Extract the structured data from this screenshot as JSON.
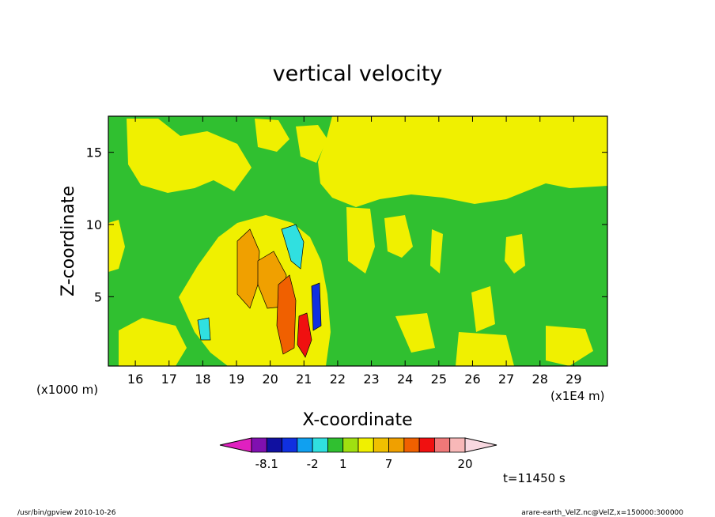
{
  "chart_data": {
    "type": "heatmap",
    "title": "vertical velocity",
    "xlabel": "X-coordinate",
    "ylabel": "Z-coordinate",
    "x_unit_left": "(x1000 m)",
    "x_unit_right": "(x1E4 m)",
    "xlim": [
      15.2,
      30.0
    ],
    "ylim": [
      0.2,
      17.5
    ],
    "x_ticks": [
      16,
      17,
      18,
      19,
      20,
      21,
      22,
      23,
      24,
      25,
      26,
      27,
      28,
      29
    ],
    "x_tick_labels": [
      "16",
      "17",
      "18",
      "19",
      "20",
      "21",
      "22",
      "23",
      "24",
      "25",
      "26",
      "27",
      "28",
      "29"
    ],
    "y_ticks": [
      5,
      10,
      15
    ],
    "y_tick_labels": [
      "5",
      "10",
      "15"
    ],
    "colorbar": {
      "colors": [
        "#e020c0",
        "#8010b0",
        "#1010a0",
        "#1030e0",
        "#10a0f0",
        "#30e0e0",
        "#30c030",
        "#a0e010",
        "#f0f000",
        "#f0c000",
        "#f0a000",
        "#f06000",
        "#f01010",
        "#f07878",
        "#f8b8b8",
        "#f8d8e0"
      ],
      "labels": [
        "-8.1",
        "-2",
        "1",
        "7",
        "20"
      ],
      "label_positions": [
        1,
        4,
        6,
        9,
        14
      ]
    },
    "grid": false,
    "legend": "colorbar-bottom",
    "time_label": "t=11450 s",
    "footer_left": "/usr/bin/gpview   2010-10-26",
    "footer_right": "arare-earth_VelZ.nc@VelZ,x=150000:300000"
  }
}
